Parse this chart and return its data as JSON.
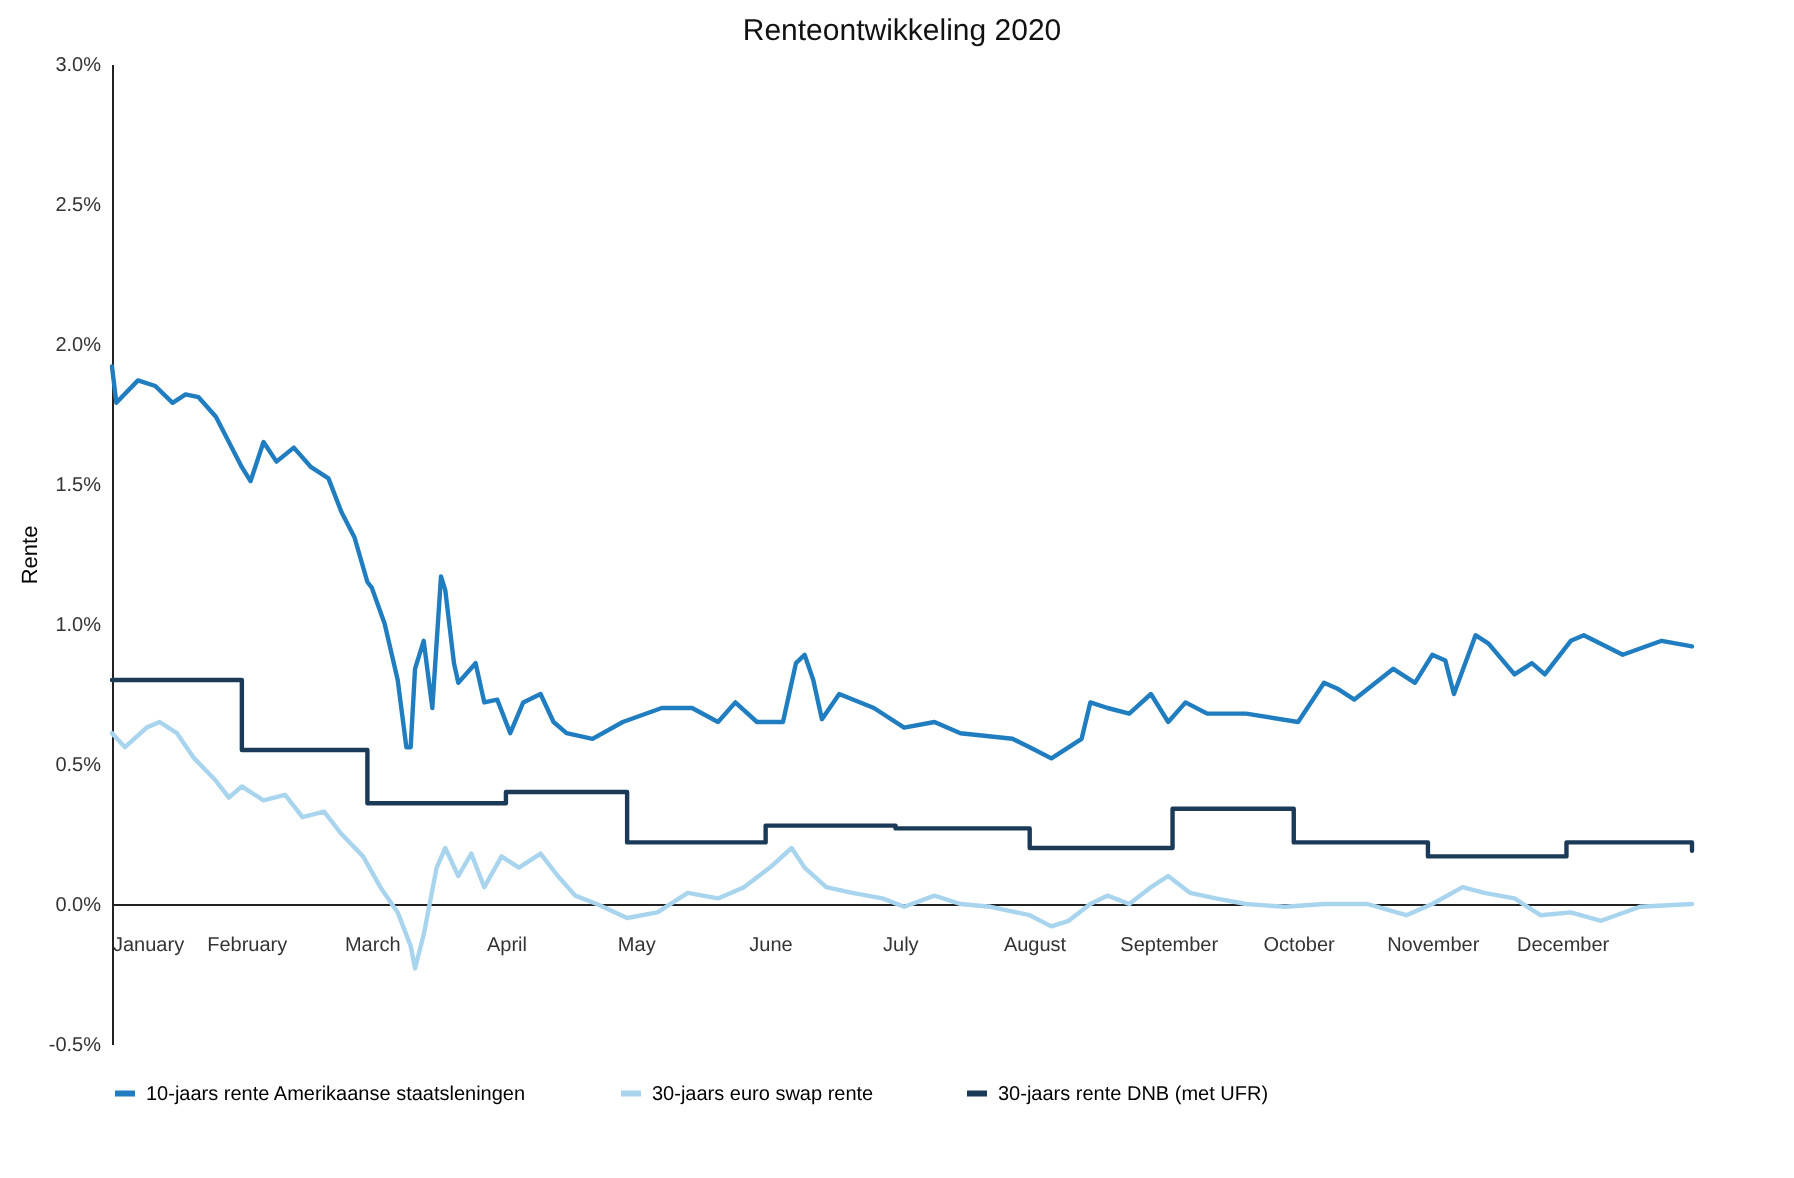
{
  "chart_data": {
    "type": "line",
    "title": "Renteontwikkeling 2020",
    "ylabel": "Rente",
    "xlim": [
      "2020-01-01",
      "2020-12-31"
    ],
    "xticks": [
      {
        "value": "2020-01-01",
        "label": "January"
      },
      {
        "value": "2020-02-01",
        "label": "February"
      },
      {
        "value": "2020-03-01",
        "label": "March"
      },
      {
        "value": "2020-04-01",
        "label": "April"
      },
      {
        "value": "2020-05-01",
        "label": "May"
      },
      {
        "value": "2020-06-01",
        "label": "June"
      },
      {
        "value": "2020-07-01",
        "label": "July"
      },
      {
        "value": "2020-08-01",
        "label": "August"
      },
      {
        "value": "2020-09-01",
        "label": "September"
      },
      {
        "value": "2020-10-01",
        "label": "October"
      },
      {
        "value": "2020-11-01",
        "label": "November"
      },
      {
        "value": "2020-12-01",
        "label": "December"
      }
    ],
    "ylim": [
      -0.5,
      3.0
    ],
    "yticks": [
      {
        "value": -0.5,
        "label": "-0.5%"
      },
      {
        "value": 0,
        "label": "0.0%"
      },
      {
        "value": 0.5,
        "label": "0.5%"
      },
      {
        "value": 1.0,
        "label": "1.0%"
      },
      {
        "value": 1.5,
        "label": "1.5%"
      },
      {
        "value": 2.0,
        "label": "2.0%"
      },
      {
        "value": 2.5,
        "label": "2.5%"
      },
      {
        "value": 3.0,
        "label": "3.0%"
      }
    ],
    "grid": false,
    "legend": "bottom",
    "series": [
      {
        "name": "10-jaars rente Amerikaanse staatsleningen",
        "color": "#1f7dc0",
        "x": [
          "2020-01-01",
          "2020-01-02",
          "2020-01-07",
          "2020-01-11",
          "2020-01-15",
          "2020-01-18",
          "2020-01-21",
          "2020-01-25",
          "2020-01-28",
          "2020-01-31",
          "2020-02-02",
          "2020-02-05",
          "2020-02-08",
          "2020-02-12",
          "2020-02-16",
          "2020-02-20",
          "2020-02-23",
          "2020-02-26",
          "2020-02-29",
          "2020-03-01",
          "2020-03-04",
          "2020-03-07",
          "2020-03-09",
          "2020-03-10",
          "2020-03-11",
          "2020-03-13",
          "2020-03-15",
          "2020-03-17",
          "2020-03-18",
          "2020-03-20",
          "2020-03-21",
          "2020-03-25",
          "2020-03-27",
          "2020-03-30",
          "2020-04-02",
          "2020-04-05",
          "2020-04-09",
          "2020-04-12",
          "2020-04-15",
          "2020-04-21",
          "2020-04-28",
          "2020-05-07",
          "2020-05-14",
          "2020-05-20",
          "2020-05-24",
          "2020-05-29",
          "2020-06-04",
          "2020-06-07",
          "2020-06-09",
          "2020-06-11",
          "2020-06-13",
          "2020-06-17",
          "2020-06-25",
          "2020-07-02",
          "2020-07-09",
          "2020-07-15",
          "2020-07-27",
          "2020-07-31",
          "2020-08-05",
          "2020-08-07",
          "2020-08-12",
          "2020-08-14",
          "2020-08-18",
          "2020-08-23",
          "2020-08-28",
          "2020-09-01",
          "2020-09-05",
          "2020-09-10",
          "2020-09-19",
          "2020-10-01",
          "2020-10-07",
          "2020-10-10",
          "2020-10-14",
          "2020-10-23",
          "2020-10-28",
          "2020-11-01",
          "2020-11-04",
          "2020-11-06",
          "2020-11-11",
          "2020-11-14",
          "2020-11-20",
          "2020-11-24",
          "2020-11-27",
          "2020-12-03",
          "2020-12-06",
          "2020-12-15",
          "2020-12-24",
          "2020-12-31"
        ],
        "values": [
          1.92,
          1.79,
          1.87,
          1.85,
          1.79,
          1.82,
          1.81,
          1.74,
          1.65,
          1.56,
          1.51,
          1.65,
          1.58,
          1.63,
          1.56,
          1.52,
          1.4,
          1.31,
          1.15,
          1.13,
          1.0,
          0.8,
          0.56,
          0.56,
          0.84,
          0.94,
          0.7,
          1.17,
          1.12,
          0.86,
          0.79,
          0.86,
          0.72,
          0.73,
          0.61,
          0.72,
          0.75,
          0.65,
          0.61,
          0.59,
          0.65,
          0.7,
          0.7,
          0.65,
          0.72,
          0.65,
          0.65,
          0.86,
          0.89,
          0.8,
          0.66,
          0.75,
          0.7,
          0.63,
          0.65,
          0.61,
          0.59,
          0.56,
          0.52,
          0.54,
          0.59,
          0.72,
          0.7,
          0.68,
          0.75,
          0.65,
          0.72,
          0.68,
          0.68,
          0.65,
          0.79,
          0.77,
          0.73,
          0.84,
          0.79,
          0.89,
          0.87,
          0.75,
          0.96,
          0.93,
          0.82,
          0.86,
          0.82,
          0.94,
          0.96,
          0.89,
          0.94,
          0.92
        ]
      },
      {
        "name": "30-jaars euro swap rente",
        "color": "#a8d4ee",
        "x": [
          "2020-01-01",
          "2020-01-04",
          "2020-01-09",
          "2020-01-12",
          "2020-01-16",
          "2020-01-20",
          "2020-01-25",
          "2020-01-28",
          "2020-01-31",
          "2020-02-05",
          "2020-02-10",
          "2020-02-14",
          "2020-02-19",
          "2020-02-23",
          "2020-02-28",
          "2020-03-03",
          "2020-03-07",
          "2020-03-10",
          "2020-03-11",
          "2020-03-13",
          "2020-03-16",
          "2020-03-18",
          "2020-03-21",
          "2020-03-24",
          "2020-03-27",
          "2020-03-31",
          "2020-04-04",
          "2020-04-09",
          "2020-04-13",
          "2020-04-17",
          "2020-04-22",
          "2020-04-29",
          "2020-05-06",
          "2020-05-13",
          "2020-05-20",
          "2020-05-26",
          "2020-06-01",
          "2020-06-06",
          "2020-06-09",
          "2020-06-14",
          "2020-06-20",
          "2020-06-27",
          "2020-07-02",
          "2020-07-09",
          "2020-07-15",
          "2020-07-22",
          "2020-07-31",
          "2020-08-05",
          "2020-08-09",
          "2020-08-14",
          "2020-08-18",
          "2020-08-23",
          "2020-08-28",
          "2020-09-01",
          "2020-09-06",
          "2020-09-12",
          "2020-09-19",
          "2020-09-28",
          "2020-10-07",
          "2020-10-17",
          "2020-10-26",
          "2020-11-01",
          "2020-11-08",
          "2020-11-13",
          "2020-11-20",
          "2020-11-26",
          "2020-12-03",
          "2020-12-10",
          "2020-12-19",
          "2020-12-31"
        ],
        "values": [
          0.61,
          0.56,
          0.63,
          0.65,
          0.61,
          0.52,
          0.44,
          0.38,
          0.42,
          0.37,
          0.39,
          0.31,
          0.33,
          0.25,
          0.17,
          0.06,
          -0.03,
          -0.15,
          -0.23,
          -0.11,
          0.13,
          0.2,
          0.1,
          0.18,
          0.06,
          0.17,
          0.13,
          0.18,
          0.1,
          0.03,
          0.0,
          -0.05,
          -0.03,
          0.04,
          0.02,
          0.06,
          0.13,
          0.2,
          0.13,
          0.06,
          0.04,
          0.02,
          -0.01,
          0.03,
          0.0,
          -0.01,
          -0.04,
          -0.08,
          -0.06,
          0.0,
          0.03,
          0.0,
          0.06,
          0.1,
          0.04,
          0.02,
          0.0,
          -0.01,
          0.0,
          0.0,
          -0.04,
          0.0,
          0.06,
          0.04,
          0.02,
          -0.04,
          -0.03,
          -0.06,
          -0.01,
          0.0
        ]
      },
      {
        "name": "30-jaars rente DNB (met UFR)",
        "color": "#1b3a57",
        "type": "step",
        "x": [
          "2020-01-01",
          "2020-01-31",
          "2020-02-29",
          "2020-04-01",
          "2020-04-29",
          "2020-05-31",
          "2020-06-30",
          "2020-07-31",
          "2020-09-02",
          "2020-09-30",
          "2020-10-31",
          "2020-12-02",
          "2020-12-31"
        ],
        "values": [
          0.8,
          0.55,
          0.36,
          0.4,
          0.22,
          0.28,
          0.27,
          0.2,
          0.34,
          0.22,
          0.17,
          0.22,
          0.19
        ]
      }
    ]
  }
}
